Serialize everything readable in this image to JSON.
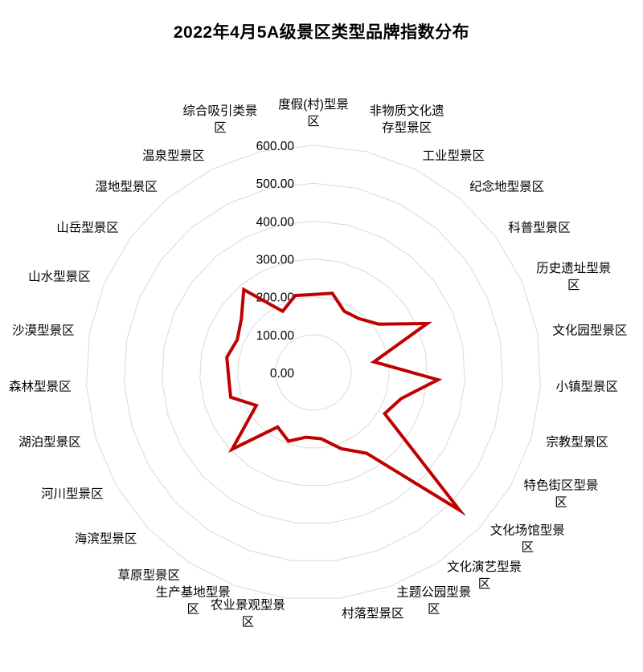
{
  "chart_data": {
    "type": "radar",
    "title": "2022年4月5A级景区类型品牌指数分布",
    "categories": [
      "度假(村)型景区",
      "非物质文化遗存型景区",
      "工业型景区",
      "纪念地型景区",
      "科普型景区",
      "历史遗址型景区",
      "文化园型景区",
      "小镇型景区",
      "宗教型景区",
      "特色街区型景区",
      "文化场馆型景区",
      "文化演艺型景区",
      "主题公园型景区",
      "村落型景区",
      "农业景观型景区",
      "生产基地型景区",
      "草原型景区",
      "海滨型景区",
      "河川型景区",
      "湖泊型景区",
      "森林型景区",
      "沙漠型景区",
      "山水型景区",
      "山岳型景区",
      "湿地型景区",
      "温泉型景区",
      "综合吸引类景区"
    ],
    "series": [
      {
        "color": "#C00000",
        "values": [
          206,
          215,
          181,
          186,
          214,
          327,
          162,
          329,
          241,
          217,
          530,
          255,
          214,
          176,
          172,
          193,
          172,
          295,
          174,
          228,
          224,
          232,
          219,
          237,
          286,
          181,
          209
        ]
      }
    ],
    "radial_axis": {
      "min": 0,
      "max": 600,
      "step": 100,
      "tick_labels": [
        "0.00",
        "100.00",
        "200.00",
        "300.00",
        "400.00",
        "500.00",
        "600.00"
      ]
    },
    "grid": true,
    "grid_color": "#D9D9D9",
    "text_color": "#000000",
    "background": "#FFFFFF",
    "legend_position": "none"
  }
}
